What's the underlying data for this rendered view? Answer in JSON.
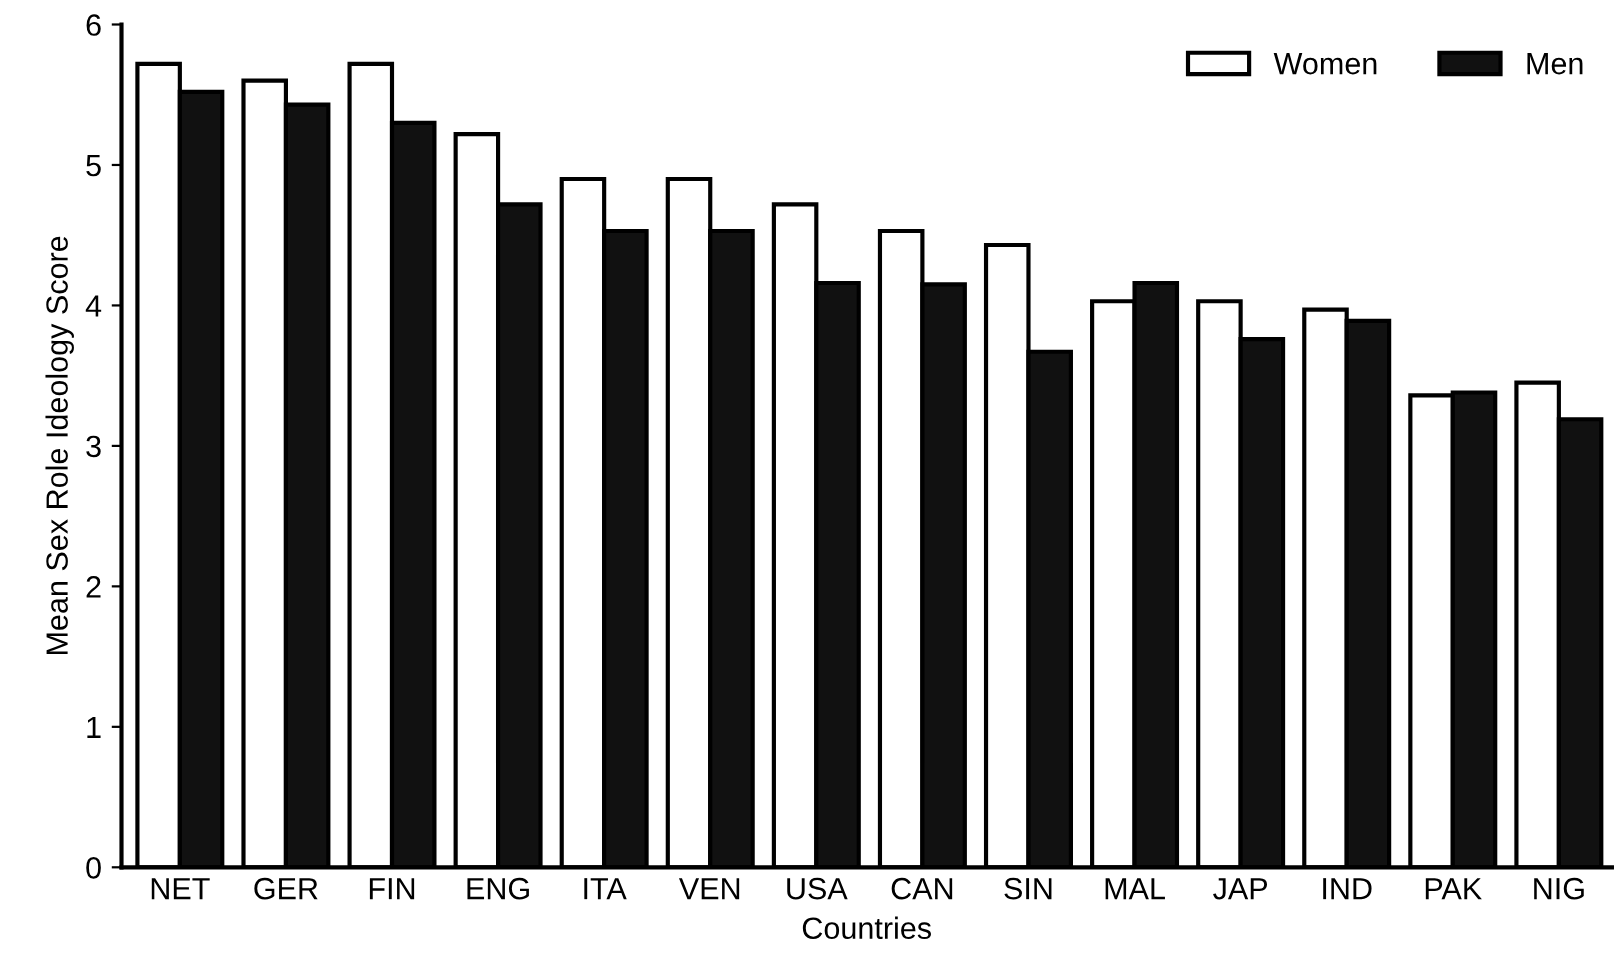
{
  "chart_data": {
    "type": "bar",
    "xlabel": "Countries",
    "ylabel": "Mean Sex Role Ideology Score",
    "categories": [
      "NET",
      "GER",
      "FIN",
      "ENG",
      "ITA",
      "VEN",
      "USA",
      "CAN",
      "SIN",
      "MAL",
      "JAP",
      "IND",
      "PAK",
      "NIG"
    ],
    "series": [
      {
        "name": "Women",
        "color": "#ffffff",
        "values": [
          5.72,
          5.6,
          5.72,
          5.22,
          4.9,
          4.9,
          4.72,
          4.53,
          4.43,
          4.03,
          4.03,
          3.97,
          3.36,
          3.45
        ]
      },
      {
        "name": "Men",
        "color": "#111111",
        "values": [
          5.52,
          5.43,
          5.3,
          4.72,
          4.53,
          4.53,
          4.16,
          4.15,
          3.67,
          4.16,
          3.76,
          3.89,
          3.38,
          3.19
        ]
      }
    ],
    "ylim": [
      0,
      6
    ],
    "yticks": [
      0,
      1,
      2,
      3,
      4,
      5,
      6
    ],
    "grid": false,
    "legend": "top right"
  }
}
